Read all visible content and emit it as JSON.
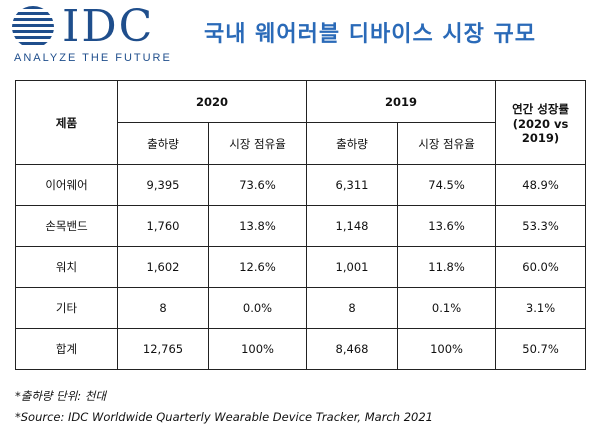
{
  "header": {
    "logo_text": "IDC",
    "tagline": "ANALYZE THE FUTURE",
    "title": "국내 웨어러블 디바이스 시장 규모"
  },
  "table": {
    "product_header": "제품",
    "year_2020": "2020",
    "year_2019": "2019",
    "growth_header_line1": "연간 성장률",
    "growth_header_line2": "(2020 vs 2019)",
    "sub_shipments": "출하량",
    "sub_share": "시장 점유율",
    "rows": [
      {
        "name": "이어웨어",
        "ship_2020": "9,395",
        "share_2020": "73.6%",
        "ship_2019": "6,311",
        "share_2019": "74.5%",
        "growth": "48.9%"
      },
      {
        "name": "손목밴드",
        "ship_2020": "1,760",
        "share_2020": "13.8%",
        "ship_2019": "1,148",
        "share_2019": "13.6%",
        "growth": "53.3%"
      },
      {
        "name": "워치",
        "ship_2020": "1,602",
        "share_2020": "12.6%",
        "ship_2019": "1,001",
        "share_2019": "11.8%",
        "growth": "60.0%"
      },
      {
        "name": "기타",
        "ship_2020": "8",
        "share_2020": "0.0%",
        "ship_2019": "8",
        "share_2019": "0.1%",
        "growth": "3.1%"
      },
      {
        "name": "합계",
        "ship_2020": "12,765",
        "share_2020": "100%",
        "ship_2019": "8,468",
        "share_2019": "100%",
        "growth": "50.7%"
      }
    ]
  },
  "footnotes": {
    "unit": "*출하량 단위: 천대",
    "source": "*Source: IDC Worldwide Quarterly Wearable Device Tracker, March 2021"
  },
  "colors": {
    "brand_blue": "#1f4e8c",
    "title_blue": "#2a6ab8"
  }
}
